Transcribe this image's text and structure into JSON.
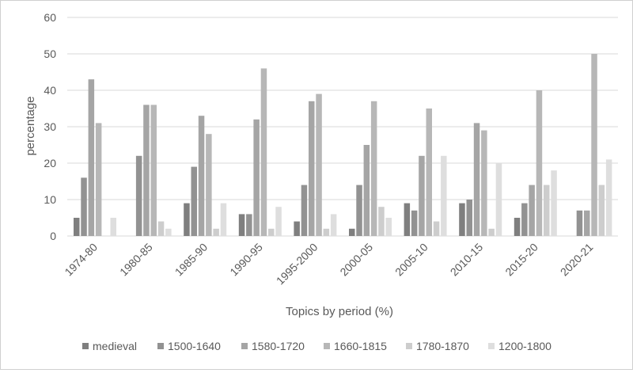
{
  "chart_data": {
    "type": "bar",
    "title": "",
    "xlabel": "Topics by period (%)",
    "ylabel": "percentage",
    "ylim": [
      0,
      60
    ],
    "yticks": [
      0,
      10,
      20,
      30,
      40,
      50,
      60
    ],
    "grid": true,
    "legend_position": "bottom",
    "categories": [
      "1974-80",
      "1980-85",
      "1985-90",
      "1990-95",
      "1995-2000",
      "2000-05",
      "2005-10",
      "2010-15",
      "2015-20",
      "2020-21"
    ],
    "series": [
      {
        "name": "medieval",
        "color": "#7f7f7f",
        "values": [
          5,
          0,
          9,
          6,
          4,
          2,
          9,
          9,
          5,
          0
        ]
      },
      {
        "name": "1500-1640",
        "color": "#929292",
        "values": [
          16,
          22,
          19,
          6,
          14,
          14,
          7,
          10,
          9,
          7
        ]
      },
      {
        "name": "1580-1720",
        "color": "#a5a5a5",
        "values": [
          43,
          36,
          33,
          32,
          37,
          25,
          22,
          31,
          14,
          7
        ]
      },
      {
        "name": "1660-1815",
        "color": "#b7b7b7",
        "values": [
          31,
          36,
          28,
          46,
          39,
          37,
          35,
          29,
          40,
          50
        ]
      },
      {
        "name": "1780-1870",
        "color": "#cdcdcd",
        "values": [
          0,
          4,
          2,
          2,
          2,
          8,
          4,
          2,
          14,
          14
        ]
      },
      {
        "name": "1200-1800",
        "color": "#dedede",
        "values": [
          5,
          2,
          9,
          8,
          6,
          5,
          22,
          20,
          18,
          21
        ]
      }
    ]
  }
}
